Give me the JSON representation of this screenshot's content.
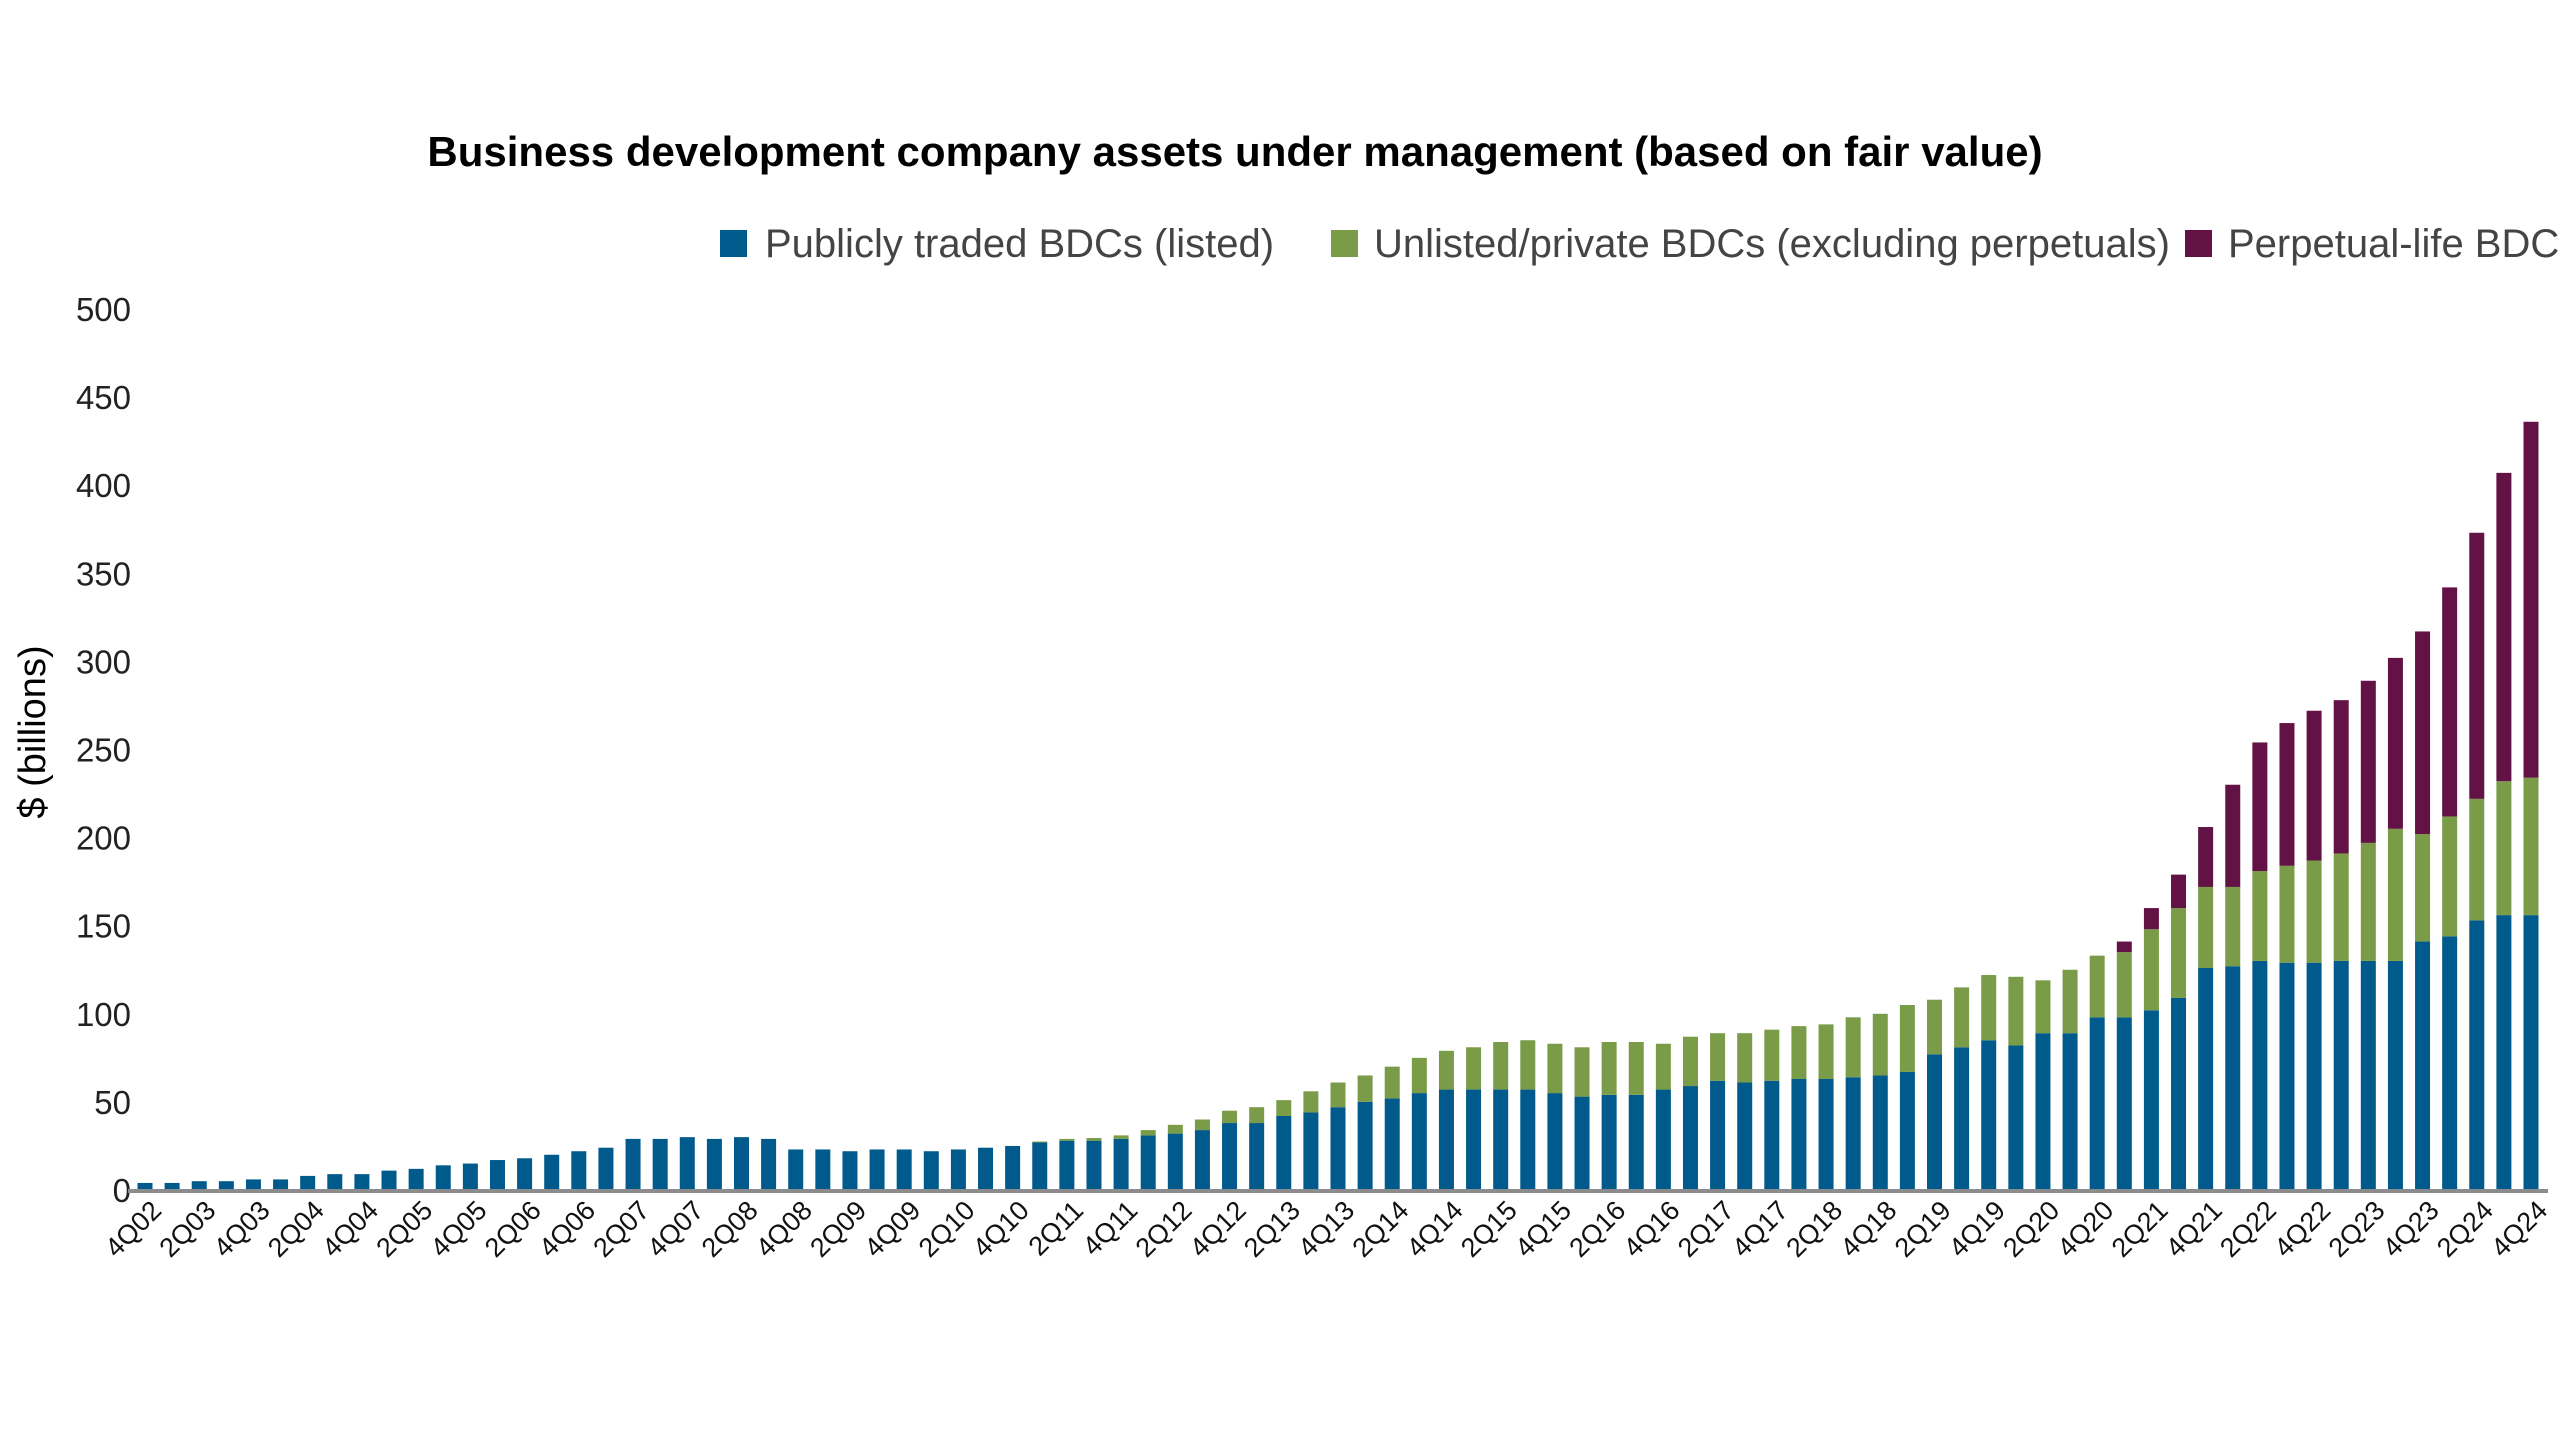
{
  "chart_data": {
    "type": "bar",
    "stacked": true,
    "title": "Business development company assets under management (based on fair value)",
    "xlabel": "",
    "ylabel": "$ (billions)",
    "ylim": [
      0,
      500
    ],
    "yticks": [
      0,
      50,
      100,
      150,
      200,
      250,
      300,
      350,
      400,
      450,
      500
    ],
    "grid": false,
    "legend_position": "top",
    "categories": [
      "4Q02",
      "1Q03",
      "2Q03",
      "3Q03",
      "4Q03",
      "1Q04",
      "2Q04",
      "3Q04",
      "4Q04",
      "1Q05",
      "2Q05",
      "3Q05",
      "4Q05",
      "1Q06",
      "2Q06",
      "3Q06",
      "4Q06",
      "1Q07",
      "2Q07",
      "3Q07",
      "4Q07",
      "1Q08",
      "2Q08",
      "3Q08",
      "4Q08",
      "1Q09",
      "2Q09",
      "3Q09",
      "4Q09",
      "1Q10",
      "2Q10",
      "3Q10",
      "4Q10",
      "1Q11",
      "2Q11",
      "3Q11",
      "4Q11",
      "1Q12",
      "2Q12",
      "3Q12",
      "4Q12",
      "1Q13",
      "2Q13",
      "3Q13",
      "4Q13",
      "1Q14",
      "2Q14",
      "3Q14",
      "4Q14",
      "1Q15",
      "2Q15",
      "3Q15",
      "4Q15",
      "1Q16",
      "2Q16",
      "3Q16",
      "4Q16",
      "1Q17",
      "2Q17",
      "3Q17",
      "4Q17",
      "1Q18",
      "2Q18",
      "3Q18",
      "4Q18",
      "1Q19",
      "2Q19",
      "3Q19",
      "4Q19",
      "1Q20",
      "2Q20",
      "3Q20",
      "4Q20",
      "1Q21",
      "2Q21",
      "3Q21",
      "4Q21",
      "1Q22",
      "2Q22",
      "3Q22",
      "4Q22",
      "1Q23",
      "2Q23",
      "3Q23",
      "4Q23",
      "1Q24",
      "2Q24",
      "3Q24",
      "4Q24"
    ],
    "tick_labels": [
      "4Q02",
      "2Q03",
      "4Q03",
      "2Q04",
      "4Q04",
      "2Q05",
      "4Q05",
      "2Q06",
      "4Q06",
      "2Q07",
      "4Q07",
      "2Q08",
      "4Q08",
      "2Q09",
      "4Q09",
      "2Q10",
      "4Q10",
      "2Q11",
      "4Q11",
      "2Q12",
      "4Q12",
      "2Q13",
      "4Q13",
      "2Q14",
      "4Q14",
      "2Q15",
      "4Q15",
      "2Q16",
      "4Q16",
      "2Q17",
      "4Q17",
      "2Q18",
      "4Q18",
      "2Q19",
      "4Q19",
      "2Q20",
      "4Q20",
      "2Q21",
      "4Q21",
      "2Q22",
      "4Q22",
      "2Q23",
      "4Q23",
      "2Q24",
      "4Q24"
    ],
    "series": [
      {
        "name": "Publicly traded BDCs (listed)",
        "color": "#005a8b",
        "values": [
          4,
          4,
          5,
          5,
          6,
          6,
          8,
          9,
          9,
          11,
          12,
          14,
          15,
          17,
          18,
          20,
          22,
          24,
          29,
          29,
          30,
          29,
          30,
          29,
          23,
          23,
          22,
          23,
          23,
          22,
          23,
          24,
          25,
          27,
          28,
          28,
          29,
          31,
          32,
          34,
          38,
          38,
          42,
          44,
          47,
          50,
          52,
          55,
          57,
          57,
          57,
          57,
          55,
          53,
          54,
          54,
          57,
          59,
          62,
          61,
          62,
          63,
          63,
          64,
          65,
          67,
          77,
          81,
          85,
          82,
          89,
          89,
          98,
          98,
          102,
          109,
          126,
          127,
          130,
          129,
          129,
          130,
          130,
          130,
          141,
          144,
          153,
          156,
          156
        ]
      },
      {
        "name": "Unlisted/private BDCs (excluding perpetuals)",
        "color": "#7a9c48",
        "values": [
          0,
          0,
          0,
          0,
          0,
          0,
          0,
          0,
          0,
          0,
          0,
          0,
          0,
          0,
          0,
          0,
          0,
          0,
          0,
          0,
          0,
          0,
          0,
          0,
          0,
          0,
          0,
          0,
          0,
          0,
          0,
          0,
          0,
          0.5,
          1,
          1.5,
          2,
          3,
          5,
          6,
          7,
          9,
          9,
          12,
          14,
          15,
          18,
          20,
          22,
          24,
          27,
          28,
          28,
          28,
          30,
          30,
          26,
          28,
          27,
          28,
          29,
          30,
          31,
          34,
          35,
          38,
          31,
          34,
          37,
          39,
          30,
          36,
          35,
          37,
          46,
          51,
          46,
          45,
          51,
          55,
          58,
          61,
          67,
          75,
          61,
          68,
          69,
          76,
          78
        ]
      },
      {
        "name": "Perpetual-life BDCs",
        "color": "#621244",
        "values": [
          0,
          0,
          0,
          0,
          0,
          0,
          0,
          0,
          0,
          0,
          0,
          0,
          0,
          0,
          0,
          0,
          0,
          0,
          0,
          0,
          0,
          0,
          0,
          0,
          0,
          0,
          0,
          0,
          0,
          0,
          0,
          0,
          0,
          0,
          0,
          0,
          0,
          0,
          0,
          0,
          0,
          0,
          0,
          0,
          0,
          0,
          0,
          0,
          0,
          0,
          0,
          0,
          0,
          0,
          0,
          0,
          0,
          0,
          0,
          0,
          0,
          0,
          0,
          0,
          0,
          0,
          0,
          0,
          0,
          0,
          0,
          0,
          0,
          6,
          12,
          19,
          34,
          58,
          73,
          81,
          85,
          87,
          92,
          97,
          115,
          130,
          151,
          175,
          202
        ]
      }
    ]
  }
}
